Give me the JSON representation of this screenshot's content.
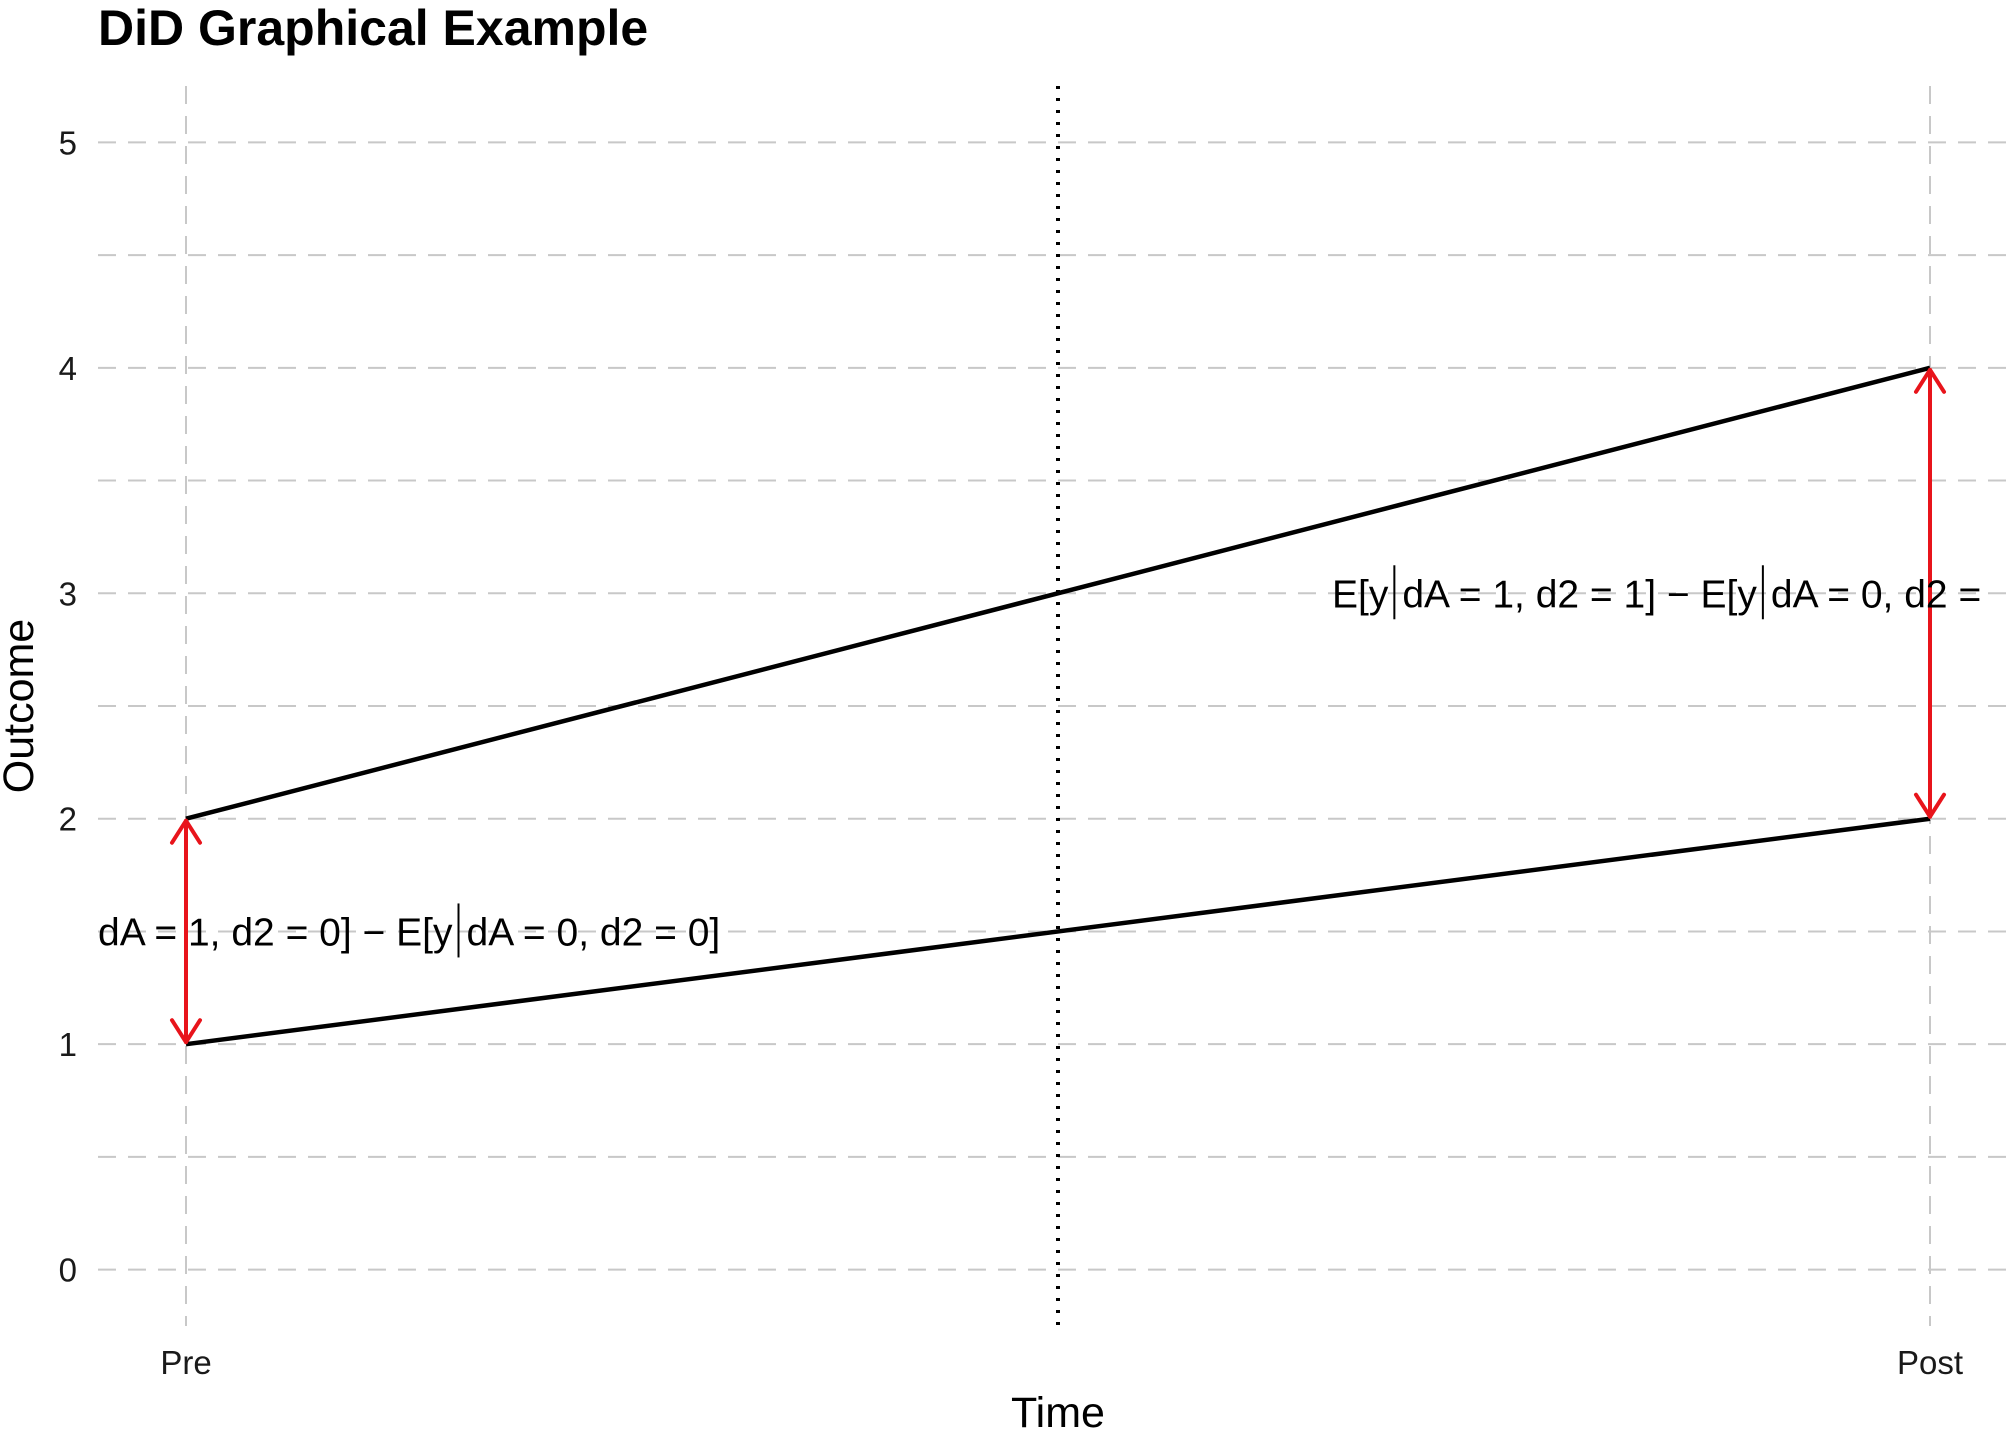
{
  "chart_data": {
    "type": "line",
    "title": "DiD Graphical Example",
    "xlabel": "Time",
    "ylabel": "Outcome",
    "categories": [
      "Pre",
      "Post"
    ],
    "series": [
      {
        "values": [
          2,
          4
        ]
      },
      {
        "values": [
          1,
          2
        ]
      }
    ],
    "ylim": [
      -0.25,
      5.25
    ],
    "yticks": [
      0,
      1,
      2,
      3,
      4,
      5
    ],
    "grid": true,
    "grid_style": "dashed",
    "vline": {
      "x_position": "midpoint",
      "style": "dotted"
    },
    "annotations": [
      {
        "category": "Pre",
        "from": 1,
        "to": 2,
        "color": "#e8141b",
        "label_parts": [
          "dA = 1, d2 = 0] − E[y",
          "dA = 0, d2 = 0]"
        ]
      },
      {
        "category": "Post",
        "from": 2,
        "to": 4,
        "color": "#e8141b",
        "label_parts": [
          "E[y",
          "dA = 1, d2 = 1] − E[y",
          "dA = 0, d2 ="
        ]
      }
    ]
  }
}
